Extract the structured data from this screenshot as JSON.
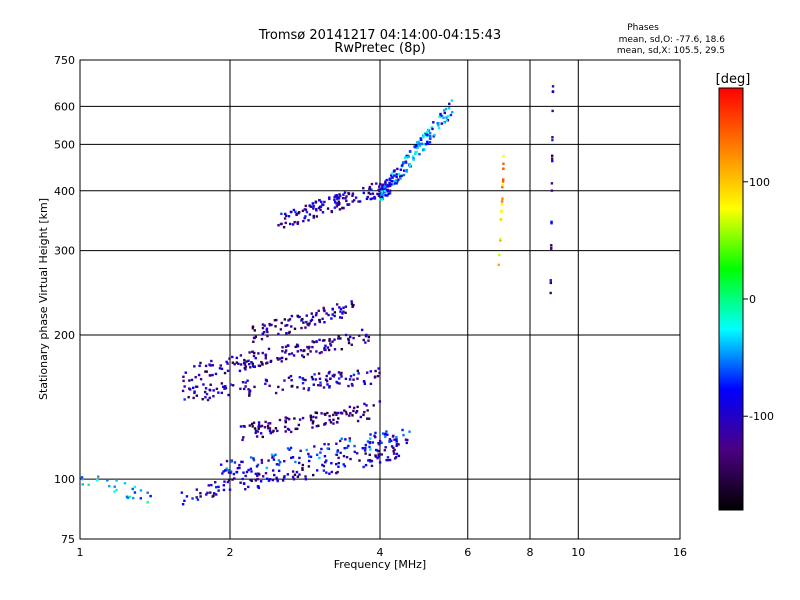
{
  "chart_data": {
    "type": "scatter",
    "title": "Tromsø 20141217 04:14:00-04:15:43",
    "subtitle": "RwPretec (8p)",
    "xlabel": "Frequency [MHz]",
    "ylabel": "Stationary phase Virtual Height [km]",
    "x_scale": "log",
    "y_scale": "log",
    "xlim": [
      1,
      16
    ],
    "ylim": [
      75,
      750
    ],
    "x_ticks": [
      1,
      2,
      4,
      6,
      8,
      10,
      16
    ],
    "y_ticks": [
      75,
      100,
      200,
      300,
      400,
      500,
      600,
      750
    ],
    "grid": true,
    "phase_info": {
      "heading": "Phases",
      "line_o": "mean, sd,O: -77.6, 18.6",
      "line_x": "mean, sd,X: 105.5, 29.5"
    },
    "colorbar": {
      "label": "[deg]",
      "range": [
        -180,
        180
      ],
      "ticks": [
        100,
        0,
        -100
      ],
      "colormap": [
        "#000000",
        "#4b0082",
        "#0000ff",
        "#00ffff",
        "#00ff00",
        "#ffff00",
        "#ff7f00",
        "#ff0000"
      ]
    },
    "traces": [
      {
        "name": "",
        "x_range": [
          1.0,
          1.4
        ],
        "height_km": [
          100,
          92
        ],
        "phase_deg": -40,
        "count": 25
      },
      {
        "name": "",
        "x_range": [
          1.6,
          4.4
        ],
        "height_km": [
          92,
          114
        ],
        "phase_deg": -110,
        "count": 140
      },
      {
        "name": "",
        "x_range": [
          1.9,
          4.6
        ],
        "height_km": [
          105,
          124
        ],
        "phase_deg": -80,
        "count": 130
      },
      {
        "name": "",
        "x_range": [
          2.1,
          4.0
        ],
        "height_km": [
          125,
          140
        ],
        "phase_deg": -130,
        "count": 110
      },
      {
        "name": "",
        "x_range": [
          1.6,
          4.0
        ],
        "height_km": [
          150,
          165
        ],
        "phase_deg": -110,
        "count": 130
      },
      {
        "name": "",
        "x_range": [
          1.6,
          3.8
        ],
        "height_km": [
          165,
          200
        ],
        "phase_deg": -120,
        "count": 150
      },
      {
        "name": "",
        "x_range": [
          2.2,
          3.6
        ],
        "height_km": [
          200,
          230
        ],
        "phase_deg": -120,
        "count": 90
      },
      {
        "name": "",
        "x_range": [
          2.5,
          4.2
        ],
        "height_km": [
          345,
          410
        ],
        "phase_deg": -110,
        "count": 150
      },
      {
        "name": "",
        "x_range": [
          4.0,
          5.6
        ],
        "height_km": [
          390,
          600
        ],
        "phase_deg": -60,
        "count": 160
      },
      {
        "name": "",
        "x_range": [
          6.9,
          7.1
        ],
        "height_km": [
          250,
          480
        ],
        "phase_deg": 110,
        "count": 20
      },
      {
        "name": "",
        "x_range": [
          8.8,
          8.9
        ],
        "height_km": [
          240,
          680
        ],
        "phase_deg": -110,
        "count": 20
      }
    ],
    "approximate": true
  }
}
